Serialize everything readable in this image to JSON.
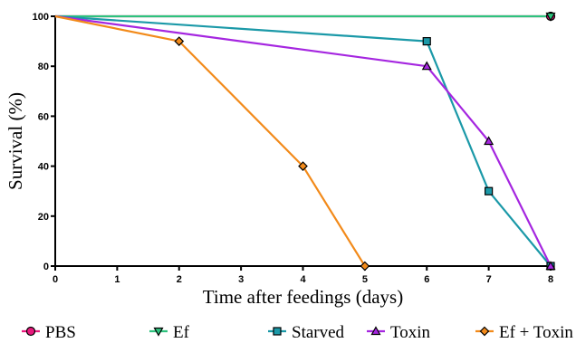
{
  "chart_data": {
    "type": "line",
    "xlabel": "Time after feedings (days)",
    "ylabel": "Survival (%)",
    "xlim": [
      0,
      8
    ],
    "ylim": [
      0,
      100
    ],
    "xticks": [
      "0",
      "1",
      "2",
      "3",
      "4",
      "5",
      "6",
      "7",
      "8"
    ],
    "yticks": [
      "0",
      "20",
      "40",
      "60",
      "80",
      "100"
    ],
    "grid": false,
    "legend_position": "bottom",
    "series": [
      {
        "name": "PBS",
        "color": "#e8197d",
        "marker": "circle",
        "x": [
          0,
          8
        ],
        "y": [
          100,
          100
        ]
      },
      {
        "name": "Ef",
        "color": "#2ec27e",
        "marker": "triangle-down",
        "x": [
          0,
          8
        ],
        "y": [
          100,
          100
        ]
      },
      {
        "name": "Starved",
        "color": "#1b99a8",
        "marker": "square",
        "x": [
          0,
          6,
          7,
          8
        ],
        "y": [
          100,
          90,
          30,
          0
        ]
      },
      {
        "name": "Toxin",
        "color": "#a526e0",
        "marker": "triangle-up",
        "x": [
          0,
          6,
          7,
          8
        ],
        "y": [
          100,
          80,
          50,
          0
        ]
      },
      {
        "name": "Ef + Toxin",
        "color": "#f28a1a",
        "marker": "diamond",
        "x": [
          0,
          2,
          4,
          5
        ],
        "y": [
          100,
          90,
          40,
          0
        ]
      }
    ]
  }
}
